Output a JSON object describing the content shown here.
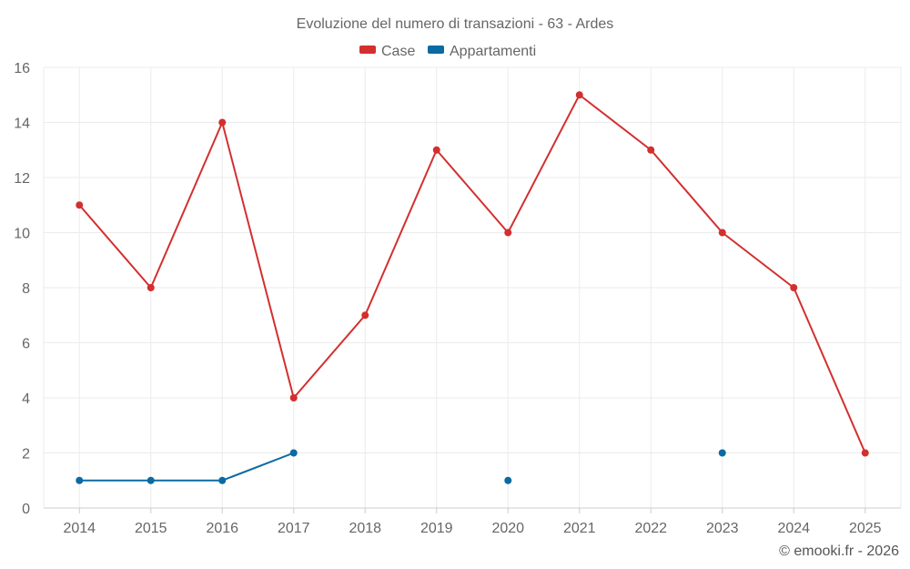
{
  "chart_data": {
    "type": "line",
    "title": "Evoluzione del numero di transazioni - 63 - Ardes",
    "categories": [
      "2014",
      "2015",
      "2016",
      "2017",
      "2018",
      "2019",
      "2020",
      "2021",
      "2022",
      "2023",
      "2024",
      "2025"
    ],
    "ylim": [
      0,
      16
    ],
    "yticks": [
      0,
      2,
      4,
      6,
      8,
      10,
      12,
      14,
      16
    ],
    "grid": true,
    "legend_position": "top-center",
    "series": [
      {
        "name": "Case",
        "color": "#d32f2f",
        "values": [
          11,
          8,
          14,
          4,
          7,
          13,
          10,
          15,
          13,
          10,
          8,
          2
        ]
      },
      {
        "name": "Appartamenti",
        "color": "#0b6aa2",
        "values": [
          1,
          1,
          1,
          2,
          null,
          null,
          1,
          null,
          null,
          2,
          null,
          null
        ]
      }
    ]
  },
  "credit": "© emooki.fr - 2026"
}
